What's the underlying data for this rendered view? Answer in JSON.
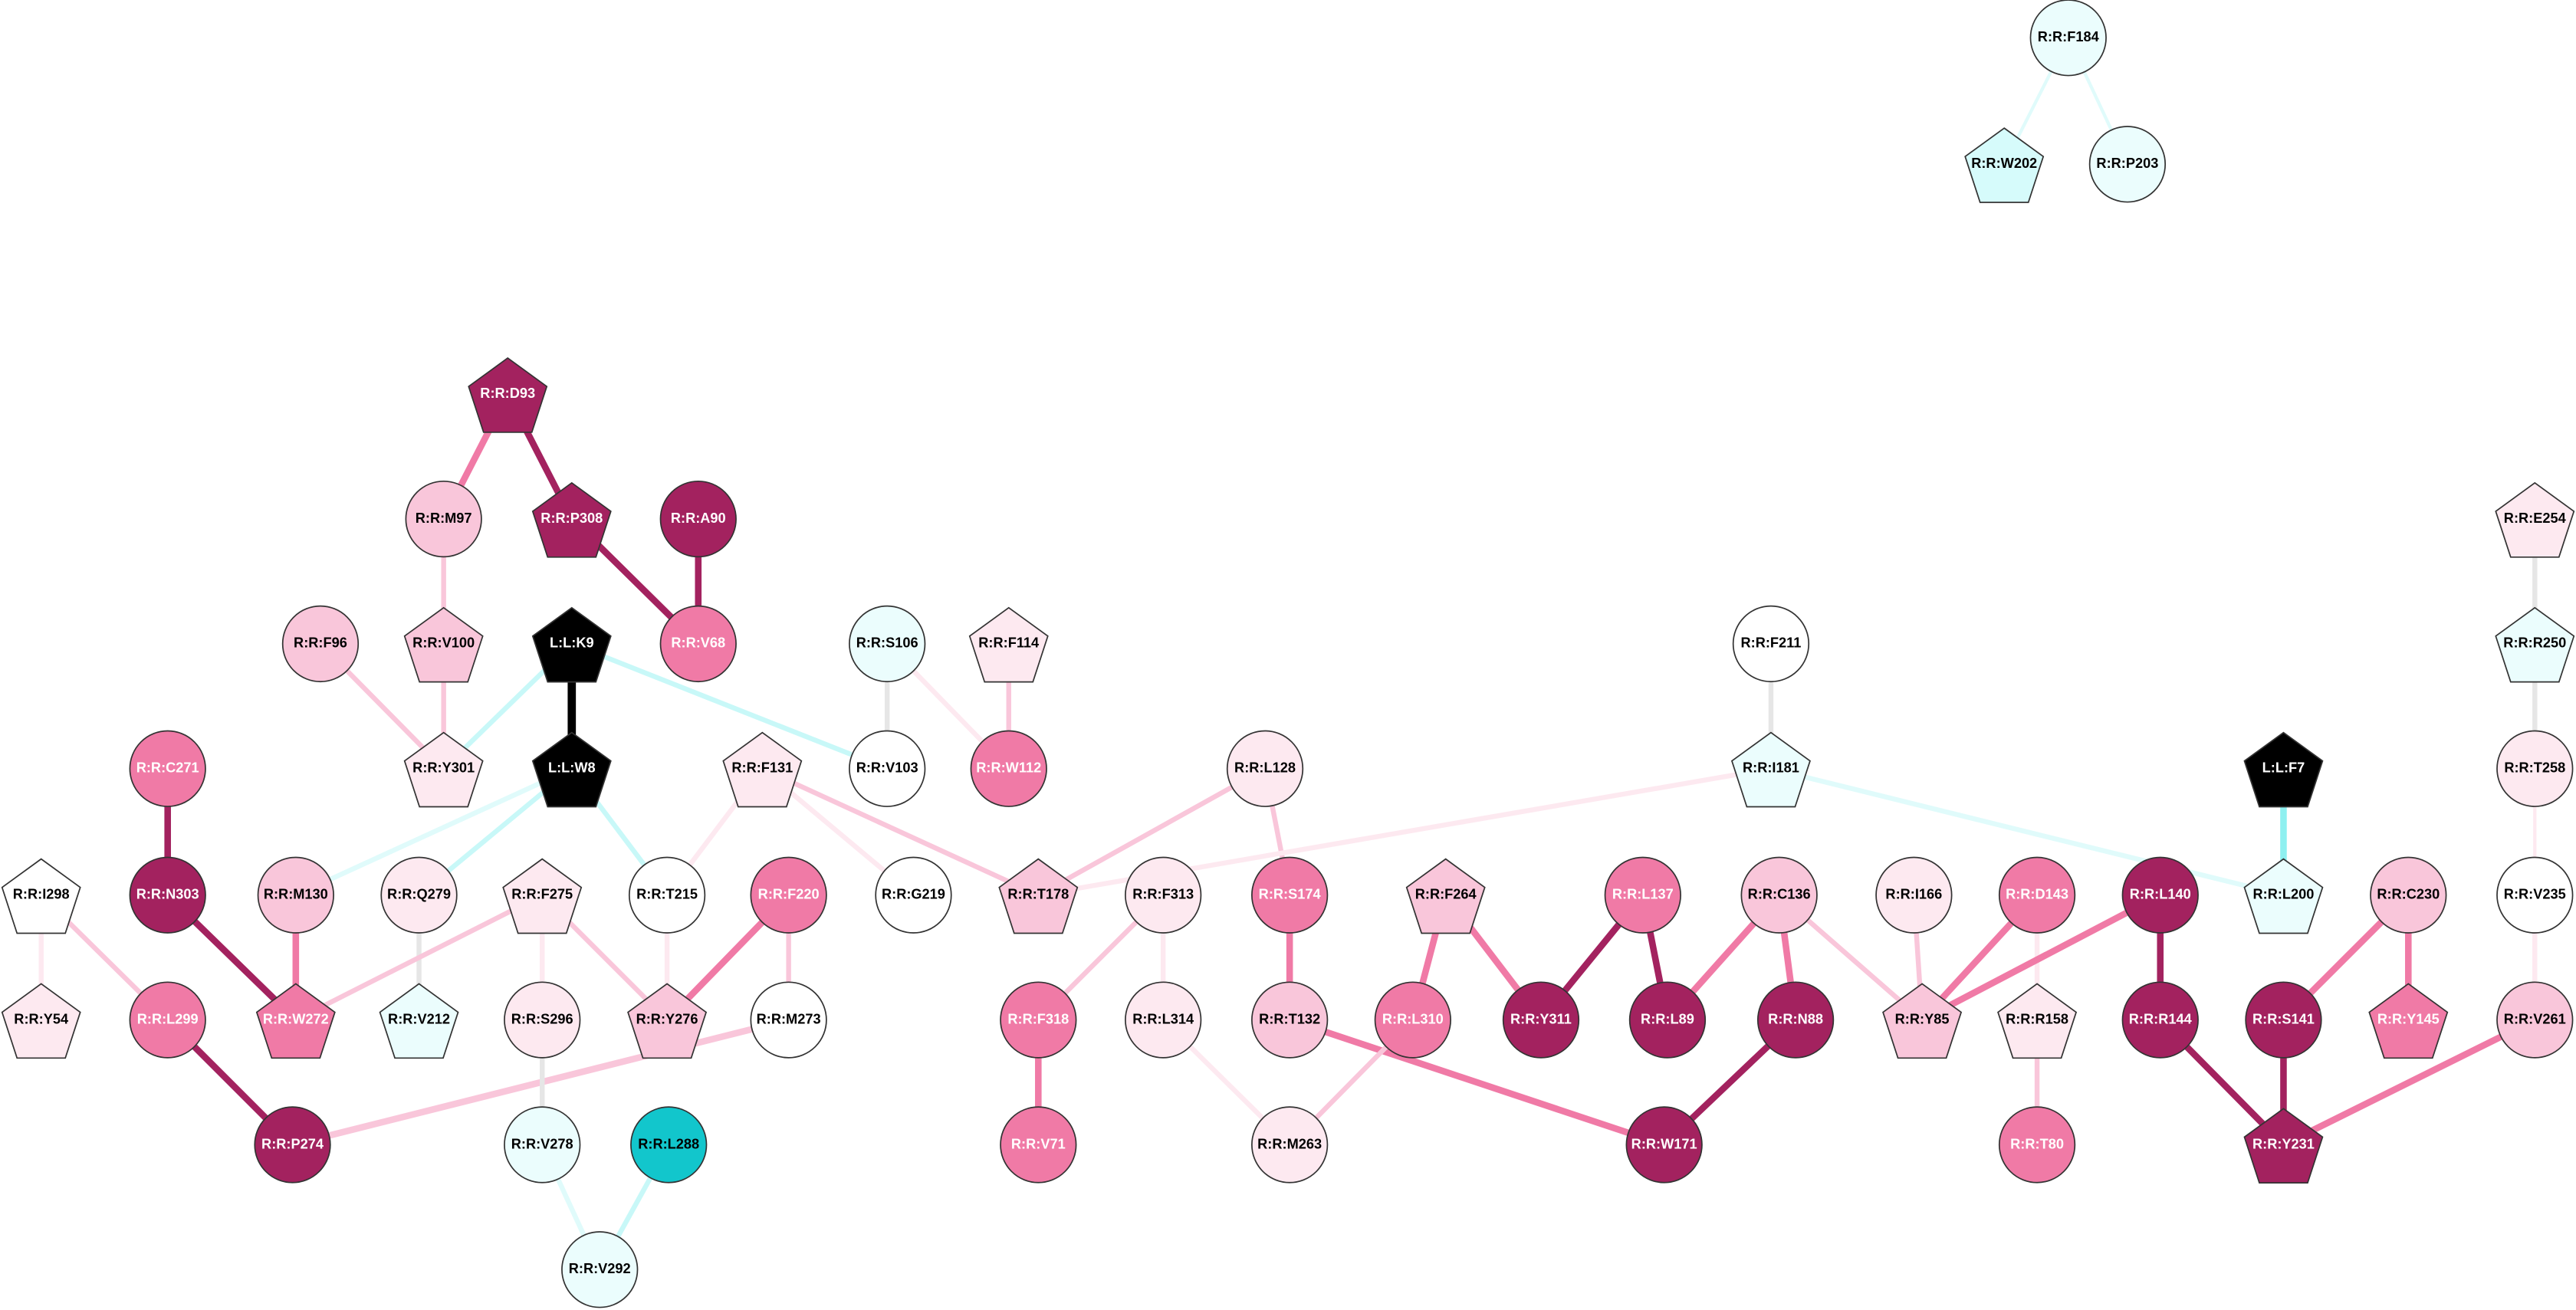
{
  "nodes": [
    {
      "label": "R:R:F184",
      "shape": "circle",
      "color": "#ebfdfd"
    },
    {
      "label": "R:R:W202",
      "shape": "pentagon",
      "color": "#d6fbfb"
    },
    {
      "label": "R:R:P203",
      "shape": "circle",
      "color": "#ebfdfd"
    },
    {
      "label": "R:R:D93",
      "shape": "pentagon",
      "color": "#a3225f"
    },
    {
      "label": "R:R:M97",
      "shape": "circle",
      "color": "#f9c6da"
    },
    {
      "label": "R:R:P308",
      "shape": "pentagon",
      "color": "#a3225f"
    },
    {
      "label": "R:R:A90",
      "shape": "circle",
      "color": "#a3225f"
    },
    {
      "label": "R:R:E254",
      "shape": "pentagon",
      "color": "#fde9f0"
    },
    {
      "label": "R:R:F96",
      "shape": "circle",
      "color": "#f9c6da"
    },
    {
      "label": "R:R:V100",
      "shape": "pentagon",
      "color": "#f9c6da"
    },
    {
      "label": "L:L:K9",
      "shape": "pentagon",
      "color": "#000000"
    },
    {
      "label": "R:R:V68",
      "shape": "circle",
      "color": "#f07aa6"
    },
    {
      "label": "R:R:S106",
      "shape": "circle",
      "color": "#ebfdfd"
    },
    {
      "label": "R:R:F114",
      "shape": "pentagon",
      "color": "#fde9f0"
    },
    {
      "label": "R:R:F211",
      "shape": "circle",
      "color": "#ffffff"
    },
    {
      "label": "R:R:R250",
      "shape": "pentagon",
      "color": "#ebfdfd"
    },
    {
      "label": "R:R:C271",
      "shape": "circle",
      "color": "#f07aa6"
    },
    {
      "label": "R:R:Y301",
      "shape": "pentagon",
      "color": "#fde9f0"
    },
    {
      "label": "L:L:W8",
      "shape": "pentagon",
      "color": "#000000"
    },
    {
      "label": "R:R:F131",
      "shape": "pentagon",
      "color": "#fde9f0"
    },
    {
      "label": "R:R:V103",
      "shape": "circle",
      "color": "#ffffff"
    },
    {
      "label": "R:R:W112",
      "shape": "circle",
      "color": "#f07aa6"
    },
    {
      "label": "R:R:L128",
      "shape": "circle",
      "color": "#fde9f0"
    },
    {
      "label": "R:R:I181",
      "shape": "pentagon",
      "color": "#ebfdfd"
    },
    {
      "label": "L:L:F7",
      "shape": "pentagon",
      "color": "#000000"
    },
    {
      "label": "R:R:T258",
      "shape": "circle",
      "color": "#fde9f0"
    },
    {
      "label": "R:R:I298",
      "shape": "pentagon",
      "color": "#ffffff"
    },
    {
      "label": "R:R:N303",
      "shape": "circle",
      "color": "#a3225f"
    },
    {
      "label": "R:R:M130",
      "shape": "circle",
      "color": "#f9c6da"
    },
    {
      "label": "R:R:Q279",
      "shape": "circle",
      "color": "#fde9f0"
    },
    {
      "label": "R:R:F275",
      "shape": "pentagon",
      "color": "#fde9f0"
    },
    {
      "label": "R:R:T215",
      "shape": "circle",
      "color": "#ffffff"
    },
    {
      "label": "R:R:F220",
      "shape": "circle",
      "color": "#f07aa6"
    },
    {
      "label": "R:R:G219",
      "shape": "circle",
      "color": "#ffffff"
    },
    {
      "label": "R:R:T178",
      "shape": "pentagon",
      "color": "#f9c6da"
    },
    {
      "label": "R:R:F313",
      "shape": "circle",
      "color": "#fde9f0"
    },
    {
      "label": "R:R:S174",
      "shape": "circle",
      "color": "#f07aa6"
    },
    {
      "label": "R:R:F264",
      "shape": "pentagon",
      "color": "#f9c6da"
    },
    {
      "label": "R:R:L137",
      "shape": "circle",
      "color": "#f07aa6"
    },
    {
      "label": "R:R:C136",
      "shape": "circle",
      "color": "#f9c6da"
    },
    {
      "label": "R:R:I166",
      "shape": "circle",
      "color": "#fde9f0"
    },
    {
      "label": "R:R:D143",
      "shape": "circle",
      "color": "#f07aa6"
    },
    {
      "label": "R:R:L140",
      "shape": "circle",
      "color": "#a3225f"
    },
    {
      "label": "R:R:L200",
      "shape": "pentagon",
      "color": "#ebfdfd"
    },
    {
      "label": "R:R:C230",
      "shape": "circle",
      "color": "#f9c6da"
    },
    {
      "label": "R:R:V235",
      "shape": "circle",
      "color": "#ffffff"
    },
    {
      "label": "R:R:Y54",
      "shape": "pentagon",
      "color": "#fde9f0"
    },
    {
      "label": "R:R:L299",
      "shape": "circle",
      "color": "#f07aa6"
    },
    {
      "label": "R:R:W272",
      "shape": "pentagon",
      "color": "#f07aa6"
    },
    {
      "label": "R:R:V212",
      "shape": "pentagon",
      "color": "#ebfdfd"
    },
    {
      "label": "R:R:S296",
      "shape": "circle",
      "color": "#fde9f0"
    },
    {
      "label": "R:R:Y276",
      "shape": "pentagon",
      "color": "#f9c6da"
    },
    {
      "label": "R:R:M273",
      "shape": "circle",
      "color": "#ffffff"
    },
    {
      "label": "R:R:F318",
      "shape": "circle",
      "color": "#f07aa6"
    },
    {
      "label": "R:R:L314",
      "shape": "circle",
      "color": "#fde9f0"
    },
    {
      "label": "R:R:T132",
      "shape": "circle",
      "color": "#f9c6da"
    },
    {
      "label": "R:R:L310",
      "shape": "circle",
      "color": "#f07aa6"
    },
    {
      "label": "R:R:Y311",
      "shape": "circle",
      "color": "#a3225f"
    },
    {
      "label": "R:R:L89",
      "shape": "circle",
      "color": "#a3225f"
    },
    {
      "label": "R:R:N88",
      "shape": "circle",
      "color": "#a3225f"
    },
    {
      "label": "R:R:Y85",
      "shape": "pentagon",
      "color": "#f9c6da"
    },
    {
      "label": "R:R:R158",
      "shape": "pentagon",
      "color": "#fde9f0"
    },
    {
      "label": "R:R:R144",
      "shape": "circle",
      "color": "#a3225f"
    },
    {
      "label": "R:R:S141",
      "shape": "circle",
      "color": "#a3225f"
    },
    {
      "label": "R:R:Y145",
      "shape": "pentagon",
      "color": "#f07aa6"
    },
    {
      "label": "R:R:V261",
      "shape": "circle",
      "color": "#f9c6da"
    },
    {
      "label": "R:R:P274",
      "shape": "circle",
      "color": "#a3225f"
    },
    {
      "label": "R:R:V278",
      "shape": "circle",
      "color": "#ebfdfd"
    },
    {
      "label": "R:R:L288",
      "shape": "circle",
      "color": "#12c6cc"
    },
    {
      "label": "R:R:V71",
      "shape": "circle",
      "color": "#f07aa6"
    },
    {
      "label": "R:R:M263",
      "shape": "circle",
      "color": "#fde9f0"
    },
    {
      "label": "R:R:W171",
      "shape": "circle",
      "color": "#a3225f"
    },
    {
      "label": "R:R:T80",
      "shape": "circle",
      "color": "#f07aa6"
    },
    {
      "label": "R:R:Y231",
      "shape": "pentagon",
      "color": "#a3225f"
    },
    {
      "label": "R:R:V292",
      "shape": "circle",
      "color": "#ebfdfd"
    }
  ]
}
